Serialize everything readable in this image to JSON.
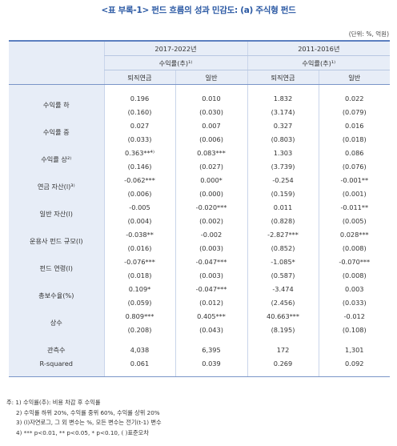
{
  "title": "<표 부록-1> 펀드 흐름의 성과 민감도: (a) 주식형 펀드",
  "unit": "(단위: %, 억원)",
  "header": {
    "periods": [
      "2017-2022년",
      "2011-2016년"
    ],
    "sub": [
      "수익률(추)¹⁾",
      "수익률(추)¹⁾"
    ],
    "cols": [
      "퇴직연금",
      "일반",
      "퇴직연금",
      "일반"
    ]
  },
  "rows": [
    {
      "label": "수익률 하",
      "coef": [
        "0.196",
        "0.010",
        "1.832",
        "0.022"
      ],
      "se": [
        "(0.160)",
        "(0.030)",
        "(3.174)",
        "(0.079)"
      ]
    },
    {
      "label": "수익률 중",
      "coef": [
        "0.027",
        "0.007",
        "0.327",
        "0.016"
      ],
      "se": [
        "(0.033)",
        "(0.006)",
        "(0.803)",
        "(0.018)"
      ]
    },
    {
      "label": "수익률 상²⁾",
      "coef": [
        "0.363**⁴⁾",
        "0.083***",
        "1.303",
        "0.086"
      ],
      "se": [
        "(0.146)",
        "(0.027)",
        "(3.739)",
        "(0.076)"
      ]
    },
    {
      "label": "연금 자산(l)³⁾",
      "coef": [
        "-0.062***",
        "0.000*",
        "-0.254",
        "-0.001**"
      ],
      "se": [
        "(0.006)",
        "(0.000)",
        "(0.159)",
        "(0.001)"
      ]
    },
    {
      "label": "일반 자산(l)",
      "coef": [
        "-0.005",
        "-0.020***",
        "0.011",
        "-0.011**"
      ],
      "se": [
        "(0.004)",
        "(0.002)",
        "(0.828)",
        "(0.005)"
      ]
    },
    {
      "label": "운용사 펀드 규모(l)",
      "coef": [
        "-0.038**",
        "-0.002",
        "-2.827***",
        "0.028***"
      ],
      "se": [
        "(0.016)",
        "(0.003)",
        "(0.852)",
        "(0.008)"
      ]
    },
    {
      "label": "펀드 연령(l)",
      "coef": [
        "-0.076***",
        "-0.047***",
        "-1.085*",
        "-0.070***"
      ],
      "se": [
        "(0.018)",
        "(0.003)",
        "(0.587)",
        "(0.008)"
      ]
    },
    {
      "label": "총보수율(%)",
      "coef": [
        "0.109*",
        "-0.047***",
        "-3.474",
        "0.003"
      ],
      "se": [
        "(0.059)",
        "(0.012)",
        "(2.456)",
        "(0.033)"
      ]
    },
    {
      "label": "상수",
      "coef": [
        "0.809***",
        "0.405***",
        "40.663***",
        "-0.012"
      ],
      "se": [
        "(0.208)",
        "(0.043)",
        "(8.195)",
        "(0.108)"
      ]
    }
  ],
  "stats": [
    {
      "label": "관측수",
      "values": [
        "4,038",
        "6,395",
        "172",
        "1,301"
      ]
    },
    {
      "label": "R-squared",
      "values": [
        "0.061",
        "0.039",
        "0.269",
        "0.092"
      ]
    }
  ],
  "notes": [
    "주: 1) 수익률(추): 비용 차감 후 수익률",
    "2) 수익률 하위 20%, 수익률 중위 60%, 수익률 상위 20%",
    "3) (l)자연로그, 그 외 변수는 %, 모든 변수는 전기(t-1) 변수",
    "4) *** p<0.01, ** p<0.05, * p<0.10, ( )표준오차"
  ]
}
